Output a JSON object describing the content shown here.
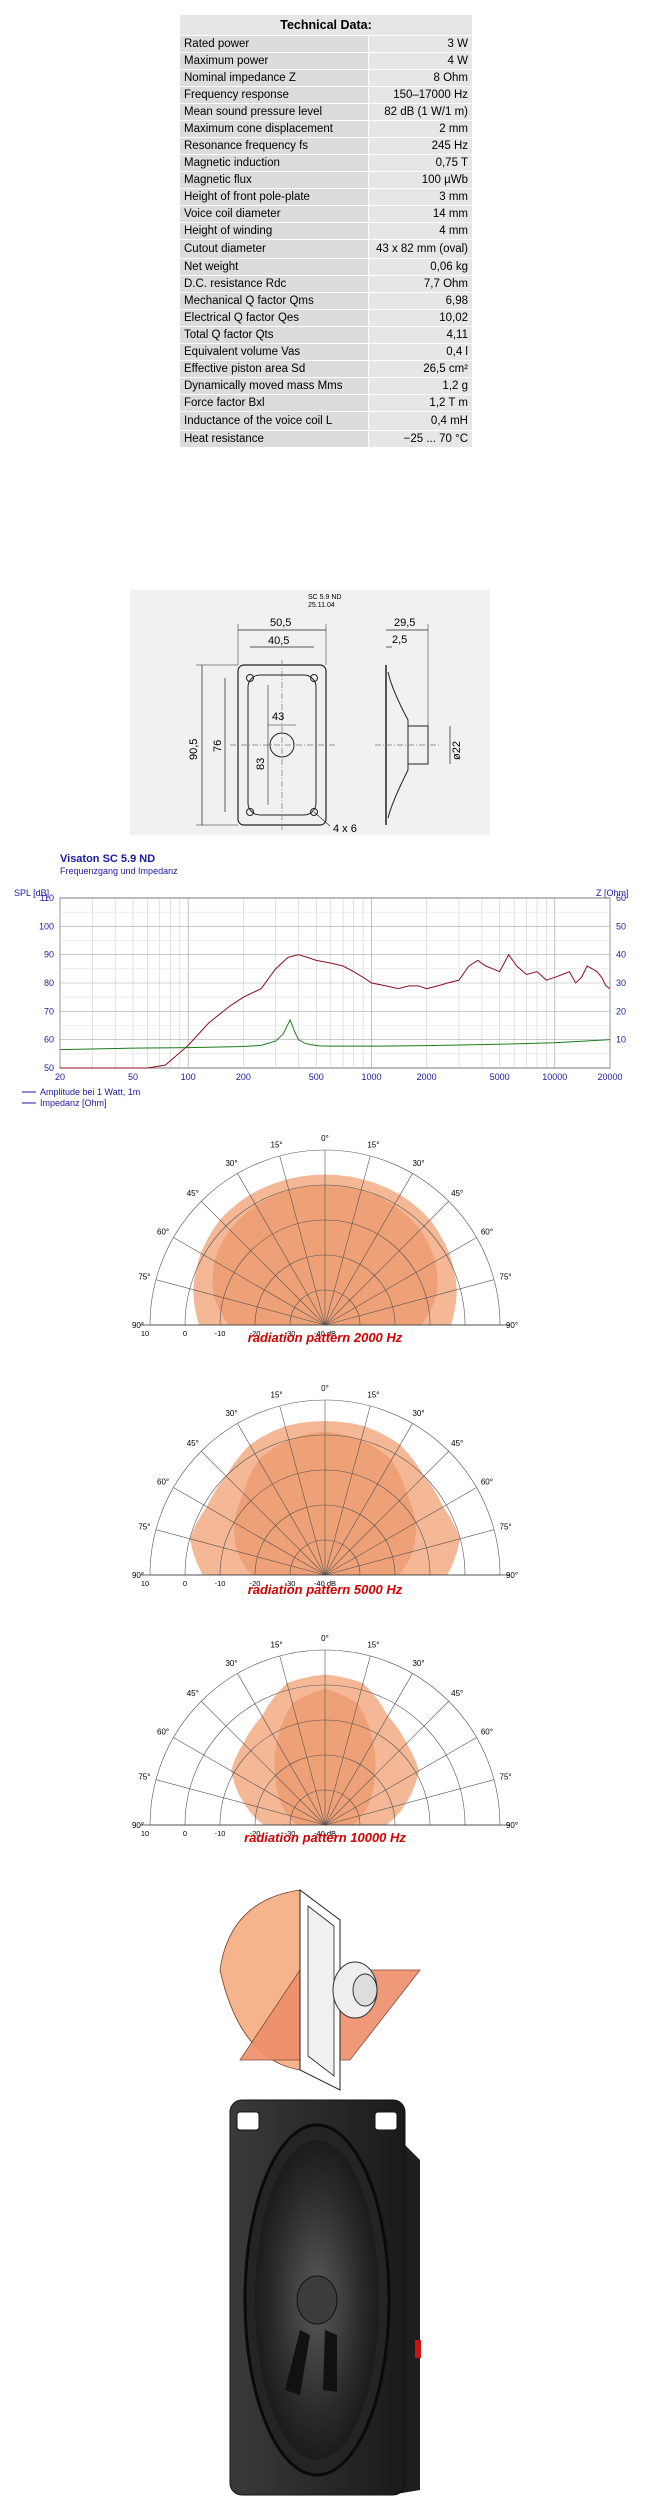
{
  "tech": {
    "title": "Technical Data:",
    "rows": [
      {
        "label": "Rated power",
        "value": "3 W"
      },
      {
        "label": "Maximum power",
        "value": "4 W"
      },
      {
        "label": "Nominal impedance Z",
        "value": "8 Ohm"
      },
      {
        "label": "Frequency response",
        "value": "150–17000 Hz"
      },
      {
        "label": "Mean sound pressure level",
        "value": "82 dB (1 W/1 m)"
      },
      {
        "label": "Maximum cone displacement",
        "value": "2 mm"
      },
      {
        "label": "Resonance frequency fs",
        "value": "245 Hz"
      },
      {
        "label": "Magnetic induction",
        "value": "0,75 T"
      },
      {
        "label": "Magnetic flux",
        "value": "100 µWb"
      },
      {
        "label": "Height of front pole-plate",
        "value": "3 mm"
      },
      {
        "label": "Voice coil diameter",
        "value": "14 mm"
      },
      {
        "label": "Height of winding",
        "value": "4 mm"
      },
      {
        "label": "Cutout diameter",
        "value": "43 x 82 mm (oval)"
      },
      {
        "label": "Net weight",
        "value": "0,06 kg"
      },
      {
        "label": "D.C. resistance Rdc",
        "value": "7,7 Ohm"
      },
      {
        "label": "Mechanical Q factor Qms",
        "value": "6,98"
      },
      {
        "label": "Electrical Q factor Qes",
        "value": "10,02"
      },
      {
        "label": "Total Q factor Qts",
        "value": "4,11"
      },
      {
        "label": "Equivalent volume Vas",
        "value": "0,4 l"
      },
      {
        "label": "Effective piston area Sd",
        "value": "26,5 cm²"
      },
      {
        "label": "Dynamically moved mass Mms",
        "value": "1,2 g"
      },
      {
        "label": "Force factor Bxl",
        "value": "1,2 T m"
      },
      {
        "label": "Inductance of the voice coil L",
        "value": "0,4 mH"
      },
      {
        "label": "Heat resistance",
        "value": "−25 ... 70 °C"
      }
    ]
  },
  "drawing": {
    "model": "SC 5.9 ND",
    "date": "25.11.04",
    "dims": [
      "50,5",
      "40,5",
      "43",
      "83",
      "90,5",
      "76",
      "4 x 6",
      "29,5",
      "2,5",
      "ø22"
    ]
  },
  "chart_data": {
    "type": "line",
    "title": "Visaton SC 5.9 ND",
    "subtitle": "Frequenzgang und Impedanz",
    "ylabel_left": "SPL [dB]",
    "ylabel_right": "Z [Ohm]",
    "x_scale": "log",
    "xlim": [
      20,
      20000
    ],
    "ylim_left": [
      50,
      110
    ],
    "ylim_right": [
      0,
      60
    ],
    "x_ticks": [
      "20",
      "50",
      "100",
      "200",
      "500",
      "1000",
      "2000",
      "5000",
      "10000",
      "20000"
    ],
    "y_ticks_left": [
      "50",
      "60",
      "70",
      "80",
      "90",
      "100",
      "110"
    ],
    "y_ticks_right": [
      "10",
      "20",
      "30",
      "40",
      "50",
      "60"
    ],
    "legend": [
      "Amplitude bei 1 Watt, 1m",
      "Impedanz [Ohm]"
    ],
    "colors": {
      "amplitude": "#8b1020",
      "impedance": "#1a7a1a",
      "axis_text": "#1a1aa0",
      "title": "#1a1aa0"
    },
    "series": [
      {
        "name": "Amplitude bei 1 Watt, 1m",
        "x": [
          20,
          40,
          60,
          75,
          85,
          100,
          130,
          170,
          200,
          250,
          300,
          350,
          400,
          450,
          500,
          600,
          700,
          800,
          900,
          1000,
          1200,
          1400,
          1600,
          1800,
          2000,
          2300,
          2600,
          3000,
          3400,
          3800,
          4200,
          4600,
          5000,
          5600,
          6200,
          7000,
          8000,
          9000,
          10000,
          11000,
          12000,
          13000,
          14000,
          15000,
          16000,
          17000,
          18000,
          19000,
          20000
        ],
        "y": [
          50,
          50,
          50,
          51,
          54,
          58,
          66,
          72,
          75,
          78,
          85,
          89,
          90,
          89,
          88,
          87,
          86,
          84,
          82,
          80,
          79,
          78,
          79,
          79,
          78,
          79,
          80,
          81,
          86,
          88,
          86,
          85,
          84,
          90,
          86,
          83,
          84,
          81,
          82,
          83,
          84,
          80,
          82,
          86,
          85,
          84,
          82,
          79,
          78
        ]
      },
      {
        "name": "Impedanz [Ohm]",
        "x": [
          20,
          50,
          100,
          150,
          200,
          250,
          300,
          330,
          360,
          380,
          400,
          430,
          470,
          520,
          600,
          800,
          1000,
          2000,
          5000,
          10000,
          20000
        ],
        "y": [
          6.5,
          7,
          7.2,
          7.4,
          7.6,
          8,
          9.5,
          12,
          17,
          13,
          10,
          8.8,
          8.2,
          7.8,
          7.7,
          7.7,
          7.7,
          7.9,
          8.4,
          8.9,
          10
        ]
      }
    ]
  },
  "polar": [
    {
      "caption": "radiation pattern 2000 Hz"
    },
    {
      "caption": "radiation pattern 5000 Hz"
    },
    {
      "caption": "radiation pattern 10000 Hz"
    }
  ],
  "polar_labels": {
    "angles": [
      "0°",
      "15°",
      "15°",
      "30°",
      "30°",
      "45°",
      "45°",
      "60°",
      "60°",
      "75°",
      "75°",
      "90°",
      "90°"
    ],
    "db": [
      "10",
      "0",
      "-10",
      "-20",
      "-30",
      "-40 dB"
    ]
  }
}
